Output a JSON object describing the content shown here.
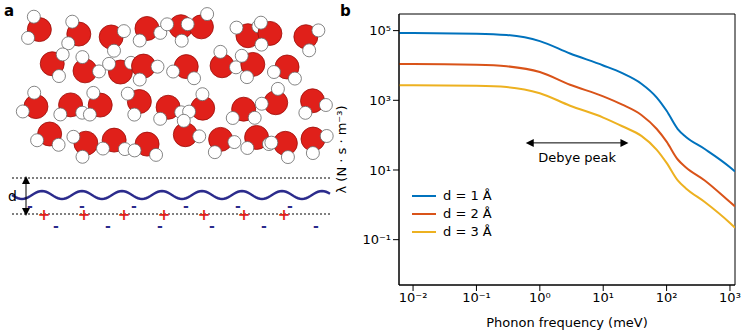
{
  "panel_a": {
    "letter": "a",
    "distance_label": "d",
    "positive_charge": "+",
    "negative_charge": "-"
  },
  "panel_b_letter": "b",
  "chart_data": {
    "type": "line",
    "x_label": "Phonon frequency (meV)",
    "y_label": "λ (N · s · m⁻³)",
    "log": true,
    "xlim": [
      0.006,
      1200
    ],
    "ylim": [
      0.005,
      300000
    ],
    "xticks": [
      {
        "value": 0.01,
        "label": "10⁻²"
      },
      {
        "value": 0.1,
        "label": "10⁻¹"
      },
      {
        "value": 1,
        "label": "10⁰"
      },
      {
        "value": 10,
        "label": "10¹"
      },
      {
        "value": 100,
        "label": "10²"
      },
      {
        "value": 1000,
        "label": "10³"
      }
    ],
    "yticks": [
      {
        "value": 0.1,
        "label": "10⁻¹"
      },
      {
        "value": 10,
        "label": "10¹"
      },
      {
        "value": 1000,
        "label": "10³"
      },
      {
        "value": 100000,
        "label": "10⁵"
      }
    ],
    "legend": "lower left",
    "annotations": [
      {
        "text": "Debye peak",
        "x": [
          0.6,
          25
        ],
        "y": 60
      }
    ],
    "x": [
      0.006,
      0.01,
      0.1,
      0.3,
      1,
      3,
      10,
      20,
      40,
      70,
      100,
      150,
      200,
      400,
      1000,
      1200
    ],
    "series": [
      {
        "name": "d = 1 Å",
        "color": "#0072BD",
        "values": [
          85000,
          85000,
          82000,
          75000,
          50000,
          22000,
          10000,
          6000,
          3000,
          1200,
          500,
          150,
          90,
          40,
          12,
          9
        ]
      },
      {
        "name": "d = 2 Å",
        "color": "#D95319",
        "values": [
          11000,
          11000,
          10500,
          9500,
          6500,
          2800,
          1300,
          750,
          380,
          150,
          65,
          20,
          12,
          5,
          1.2,
          0.9
        ]
      },
      {
        "name": "d = 3 Å",
        "color": "#EDB120",
        "values": [
          2700,
          2700,
          2600,
          2400,
          1600,
          700,
          320,
          180,
          95,
          38,
          16,
          5,
          3,
          1.2,
          0.3,
          0.22
        ]
      }
    ]
  }
}
